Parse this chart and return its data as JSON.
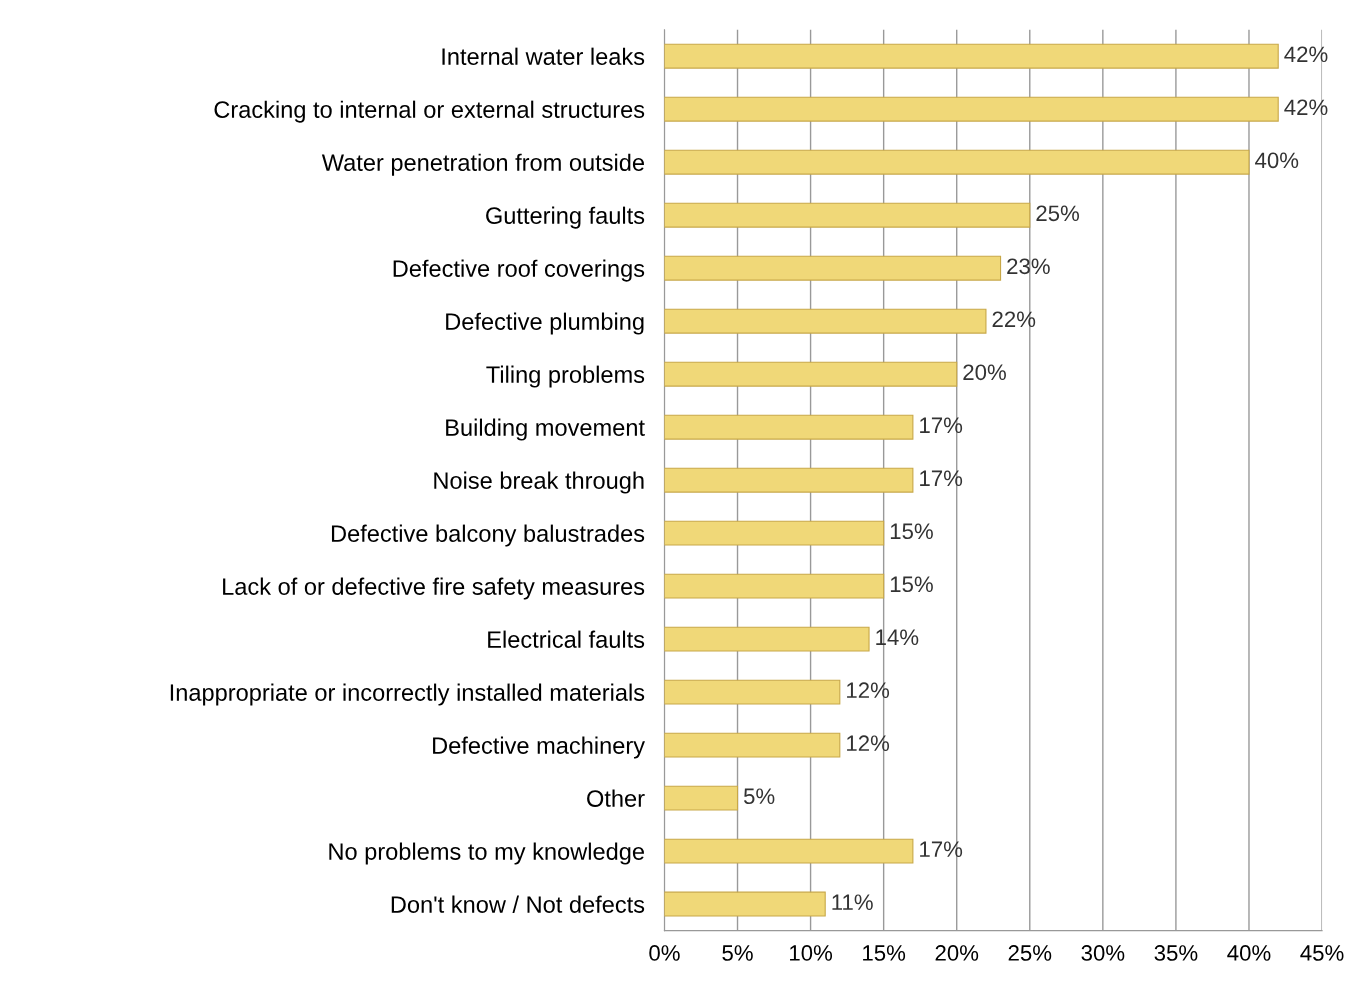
{
  "chart_data": {
    "type": "bar",
    "orientation": "horizontal",
    "categories": [
      "Internal water leaks",
      "Cracking to internal or external structures",
      "Water penetration from outside",
      "Guttering faults",
      "Defective roof coverings",
      "Defective plumbing",
      "Tiling problems",
      "Building movement",
      "Noise break through",
      "Defective balcony balustrades",
      "Lack of or defective fire safety measures",
      "Electrical faults",
      "Inappropriate or incorrectly installed materials",
      "Defective machinery",
      "Other",
      "No problems to my knowledge",
      "Don't know / Not defects"
    ],
    "values": [
      42,
      42,
      40,
      25,
      23,
      22,
      20,
      17,
      17,
      15,
      15,
      14,
      12,
      12,
      5,
      17,
      11
    ],
    "value_labels": [
      "42%",
      "42%",
      "40%",
      "25%",
      "23%",
      "22%",
      "20%",
      "17%",
      "17%",
      "15%",
      "15%",
      "14%",
      "12%",
      "12%",
      "5%",
      "17%",
      "11%"
    ],
    "color": "#f0d878",
    "xlim": [
      0,
      45
    ],
    "xticks": [
      {
        "value": 0,
        "label": "0%"
      },
      {
        "value": 5,
        "label": "5%"
      },
      {
        "value": 10,
        "label": "10%"
      },
      {
        "value": 15,
        "label": "15%"
      },
      {
        "value": 20,
        "label": "20%"
      },
      {
        "value": 25,
        "label": "25%"
      },
      {
        "value": 30,
        "label": "30%"
      },
      {
        "value": 35,
        "label": "35%"
      },
      {
        "value": 40,
        "label": "40%"
      },
      {
        "value": 45,
        "label": "45%"
      }
    ],
    "grid": "x"
  }
}
